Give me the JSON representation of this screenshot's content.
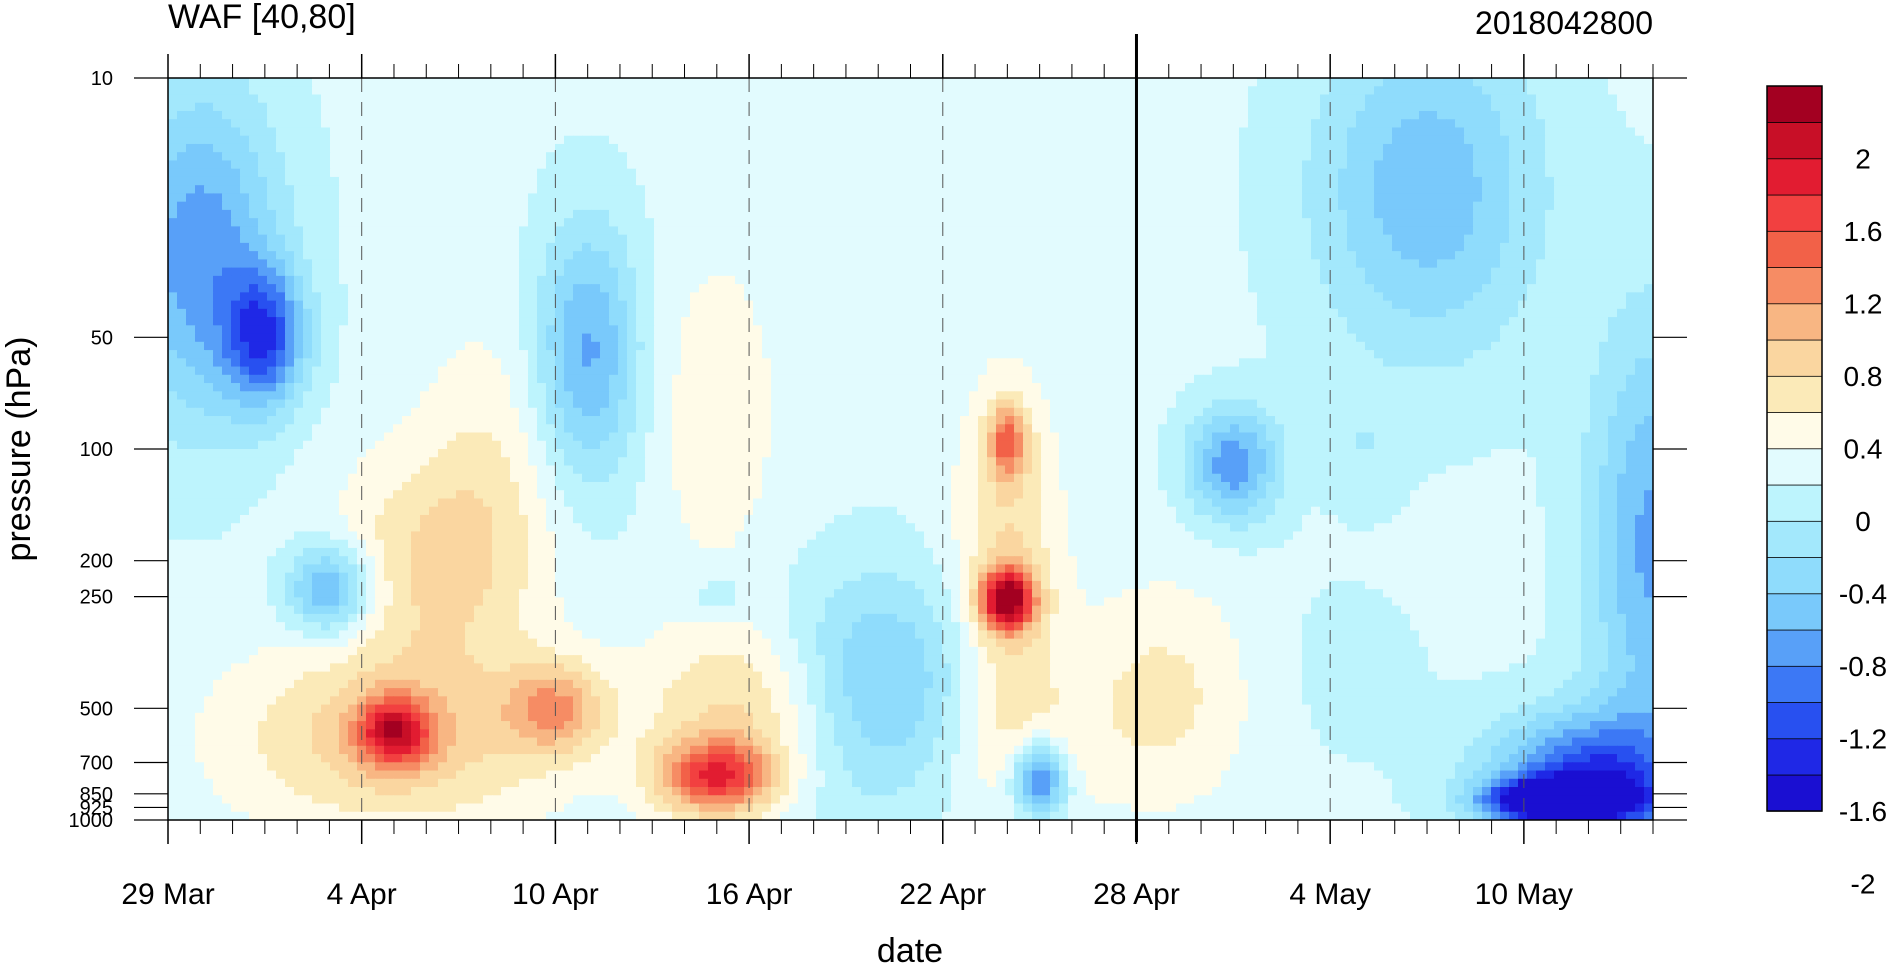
{
  "chart_data": {
    "type": "heatmap",
    "title": "WAF [40,80]",
    "subtitle": "2018042800",
    "xlabel": "date",
    "ylabel": "pressure (hPa)",
    "x_ticks": [
      "29 Mar",
      "4 Apr",
      "10 Apr",
      "16 Apr",
      "22 Apr",
      "28 Apr",
      "4 May",
      "10 May"
    ],
    "x_range": [
      "2018-03-29",
      "2018-05-14"
    ],
    "marker_date": "2018-04-28",
    "y_ticks": [
      10,
      50,
      100,
      200,
      250,
      500,
      700,
      850,
      925,
      1000
    ],
    "y_tick_labels": [
      "10",
      "50",
      "100",
      "200",
      "250",
      "500",
      "700",
      "850",
      "925",
      "1000"
    ],
    "y_scale": "log",
    "y_reversed": true,
    "y_range": [
      10,
      1000
    ],
    "colorbar": {
      "labels": [
        "2",
        "1.6",
        "1.2",
        "0.8",
        "0.4",
        "0",
        "-0.4",
        "-0.8",
        "-1.2",
        "-1.6",
        "-2"
      ],
      "levels": [
        -2.2,
        -2.0,
        -1.8,
        -1.6,
        -1.4,
        -1.2,
        -1.0,
        -0.8,
        -0.6,
        -0.4,
        -0.2,
        0,
        0.2,
        0.4,
        0.6,
        0.8,
        1.0,
        1.2,
        1.4,
        1.6,
        1.8,
        2.0,
        2.2
      ],
      "colors": [
        "#1a0fd2",
        "#1f28e6",
        "#2850f0",
        "#3c78f5",
        "#58a0f8",
        "#79c9fb",
        "#8fdcfc",
        "#a3e8fc",
        "#bdf4fd",
        "#e2fbfe",
        "#fffbe8",
        "#fbeab8",
        "#fad6a0",
        "#f8b683",
        "#f68c64",
        "#f26148",
        "#f24040",
        "#e21c31",
        "#c80f27",
        "#a30021"
      ]
    },
    "blobs": [
      {
        "date": "2018-03-30",
        "p": 30,
        "dx": 2.5,
        "dy": 0.45,
        "v": -1.0
      },
      {
        "date": "2018-04-01",
        "p": 50,
        "dx": 1.2,
        "dy": 0.18,
        "v": -1.2
      },
      {
        "date": "2018-04-11",
        "p": 55,
        "dx": 1.6,
        "dy": 0.35,
        "v": -0.9
      },
      {
        "date": "2018-04-03",
        "p": 240,
        "dx": 1.3,
        "dy": 0.12,
        "v": -1.0
      },
      {
        "date": "2018-04-05",
        "p": 600,
        "dx": 5.0,
        "dy": 0.25,
        "v": 0.7
      },
      {
        "date": "2018-04-05",
        "p": 580,
        "dx": 1.1,
        "dy": 0.09,
        "v": 1.3
      },
      {
        "date": "2018-04-06",
        "p": 200,
        "dx": 3.0,
        "dy": 0.3,
        "v": 0.5
      },
      {
        "date": "2018-04-08",
        "p": 120,
        "dx": 2.2,
        "dy": 0.45,
        "v": 0.3
      },
      {
        "date": "2018-04-10",
        "p": 500,
        "dx": 1.5,
        "dy": 0.12,
        "v": 0.8
      },
      {
        "date": "2018-04-15",
        "p": 80,
        "dx": 2.0,
        "dy": 0.45,
        "v": 0.3
      },
      {
        "date": "2018-04-16",
        "p": 500,
        "dx": 3.2,
        "dy": 0.22,
        "v": 0.6
      },
      {
        "date": "2018-04-15",
        "p": 770,
        "dx": 1.8,
        "dy": 0.1,
        "v": 1.4
      },
      {
        "date": "2018-04-15",
        "p": 250,
        "dx": 0.9,
        "dy": 0.06,
        "v": -0.3
      },
      {
        "date": "2018-04-20",
        "p": 450,
        "dx": 3.0,
        "dy": 0.3,
        "v": -0.8
      },
      {
        "date": "2018-04-24",
        "p": 600,
        "dx": 4.0,
        "dy": 0.22,
        "v": 0.2
      },
      {
        "date": "2018-04-24",
        "p": 220,
        "dx": 1.6,
        "dy": 0.5,
        "v": 0.6
      },
      {
        "date": "2018-04-24",
        "p": 255,
        "dx": 0.8,
        "dy": 0.08,
        "v": 1.9
      },
      {
        "date": "2018-04-24",
        "p": 95,
        "dx": 0.6,
        "dy": 0.1,
        "v": 1.0
      },
      {
        "date": "2018-04-25",
        "p": 780,
        "dx": 0.8,
        "dy": 0.1,
        "v": -1.3
      },
      {
        "date": "2018-04-29",
        "p": 450,
        "dx": 2.8,
        "dy": 0.3,
        "v": 0.4
      },
      {
        "date": "2018-05-01",
        "p": 110,
        "dx": 1.4,
        "dy": 0.15,
        "v": -1.0
      },
      {
        "date": "2018-05-05",
        "p": 100,
        "dx": 1.2,
        "dy": 0.15,
        "v": -0.2
      },
      {
        "date": "2018-05-04",
        "p": 400,
        "dx": 3.5,
        "dy": 0.3,
        "v": -0.1
      },
      {
        "date": "2018-05-07",
        "p": 20,
        "dx": 3.5,
        "dy": 0.45,
        "v": -0.8
      },
      {
        "date": "2018-05-12",
        "p": 800,
        "dx": 3.0,
        "dy": 0.18,
        "v": -1.5
      },
      {
        "date": "2018-05-11",
        "p": 880,
        "dx": 2.0,
        "dy": 0.05,
        "v": -2.1
      },
      {
        "date": "2018-05-14",
        "p": 180,
        "dx": 2.0,
        "dy": 0.6,
        "v": -0.9
      }
    ]
  }
}
